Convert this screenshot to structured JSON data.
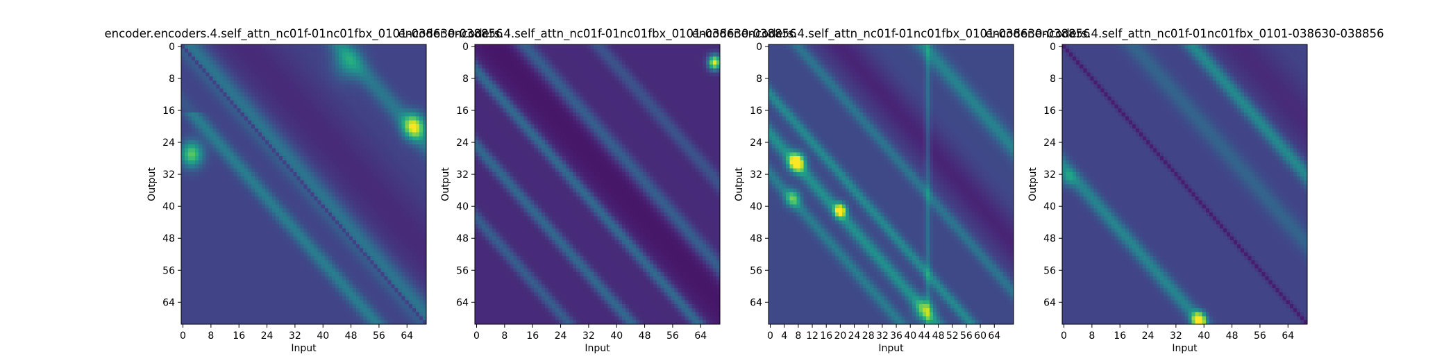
{
  "colors": {
    "colormap": [
      "#440154",
      "#482475",
      "#414487",
      "#355f8d",
      "#2a788e",
      "#21918c",
      "#22a884",
      "#44bf70",
      "#7ad151",
      "#bddf26",
      "#fde725"
    ],
    "frame": "#000000",
    "background": "#ffffff"
  },
  "chart_data": [
    {
      "type": "heatmap",
      "title": "encoder.encoders.4.self_attn_nc01f-01nc01fbx_0101-038630-038856",
      "xlabel": "Input",
      "ylabel": "Output",
      "xticks": [
        "0",
        "8",
        "16",
        "24",
        "32",
        "40",
        "48",
        "56",
        "64"
      ],
      "yticks": [
        "0",
        "8",
        "16",
        "24",
        "32",
        "40",
        "48",
        "56",
        "64"
      ],
      "size": [
        70,
        70
      ],
      "head": 0,
      "grid": false
    },
    {
      "type": "heatmap",
      "title": "encoder.encoders.4.self_attn_nc01f-01nc01fbx_0101-038630-038856",
      "xlabel": "Input",
      "ylabel": "Output",
      "xticks": [
        "0",
        "8",
        "16",
        "24",
        "32",
        "40",
        "48",
        "56",
        "64"
      ],
      "yticks": [
        "0",
        "8",
        "16",
        "24",
        "32",
        "40",
        "48",
        "56",
        "64"
      ],
      "size": [
        70,
        70
      ],
      "head": 1,
      "grid": false
    },
    {
      "type": "heatmap",
      "title": "encoder.encoders.4.self_attn_nc01f-01nc01fbx_0101-038630-038856",
      "xlabel": "Input",
      "ylabel": "Output",
      "xticks": [
        "0",
        "4",
        "8",
        "12",
        "16",
        "20",
        "24",
        "28",
        "32",
        "36",
        "40",
        "44",
        "48",
        "52",
        "56",
        "60",
        "64"
      ],
      "yticks": [
        "0",
        "8",
        "16",
        "24",
        "32",
        "40",
        "48",
        "56",
        "64"
      ],
      "size": [
        70,
        70
      ],
      "head": 2,
      "grid": false
    },
    {
      "type": "heatmap",
      "title": "encoder.encoders.4.self_attn_nc01f-01nc01fbx_0101-038630-038856",
      "xlabel": "Input",
      "ylabel": "Output",
      "xticks": [
        "0",
        "8",
        "16",
        "24",
        "32",
        "40",
        "48",
        "56",
        "64"
      ],
      "yticks": [
        "0",
        "8",
        "16",
        "24",
        "32",
        "40",
        "48",
        "56",
        "64"
      ],
      "size": [
        70,
        70
      ],
      "head": 3,
      "grid": false
    }
  ]
}
